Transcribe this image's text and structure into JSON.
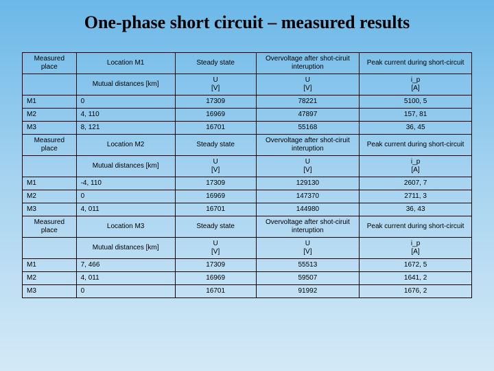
{
  "title": "One-phase short circuit – measured results",
  "table": {
    "sections": [
      {
        "header": {
          "placeLabel": "Measured place",
          "locationLabel": "Location M1",
          "steadyLabel": "Steady state",
          "overLabel": "Overvoltage after shot-ciruit interuption",
          "peakLabel": "Peak current during short-circuit"
        },
        "subheader": {
          "mutual": "Mutual distances [km]",
          "u1": "U\n[V]",
          "u2": "U\n[V]",
          "ip": "i_p\n[A]"
        },
        "rows": [
          {
            "place": "M1",
            "dist": "0",
            "steady": "17309",
            "over": "78221",
            "peak": "5100, 5"
          },
          {
            "place": "M2",
            "dist": "4, 110",
            "steady": "16969",
            "over": "47897",
            "peak": "157, 81"
          },
          {
            "place": "M3",
            "dist": "8, 121",
            "steady": "16701",
            "over": "55168",
            "peak": "36, 45"
          }
        ]
      },
      {
        "header": {
          "placeLabel": "Measured place",
          "locationLabel": "Location M2",
          "steadyLabel": "Steady state",
          "overLabel": "Overvoltage after shot-ciruit interuption",
          "peakLabel": "Peak current during short-circuit"
        },
        "subheader": {
          "mutual": "Mutual distances [km]",
          "u1": "U\n[V]",
          "u2": "U\n[V]",
          "ip": "i_p\n[A]"
        },
        "rows": [
          {
            "place": "M1",
            "dist": "-4, 110",
            "steady": "17309",
            "over": "129130",
            "peak": "2607, 7"
          },
          {
            "place": "M2",
            "dist": "0",
            "steady": "16969",
            "over": "147370",
            "peak": "2711, 3"
          },
          {
            "place": "M3",
            "dist": "4, 011",
            "steady": "16701",
            "over": "144980",
            "peak": "36, 43"
          }
        ]
      },
      {
        "header": {
          "placeLabel": "Measured place",
          "locationLabel": "Location M3",
          "steadyLabel": "Steady state",
          "overLabel": "Overvoltage after shot-ciruit interuption",
          "peakLabel": "Peak current during short-circuit"
        },
        "subheader": {
          "mutual": "Mutual distances [km]",
          "u1": "U\n[V]",
          "u2": "U\n[V]",
          "ip": "i_p\n[A]"
        },
        "rows": [
          {
            "place": "M1",
            "dist": "7, 466",
            "steady": "17309",
            "over": "55513",
            "peak": "1672, 5"
          },
          {
            "place": "M2",
            "dist": "4, 011",
            "steady": "16969",
            "over": "59507",
            "peak": "1641, 2"
          },
          {
            "place": "M3",
            "dist": "0",
            "steady": "16701",
            "over": "91992",
            "peak": "1676, 2"
          }
        ]
      }
    ]
  }
}
